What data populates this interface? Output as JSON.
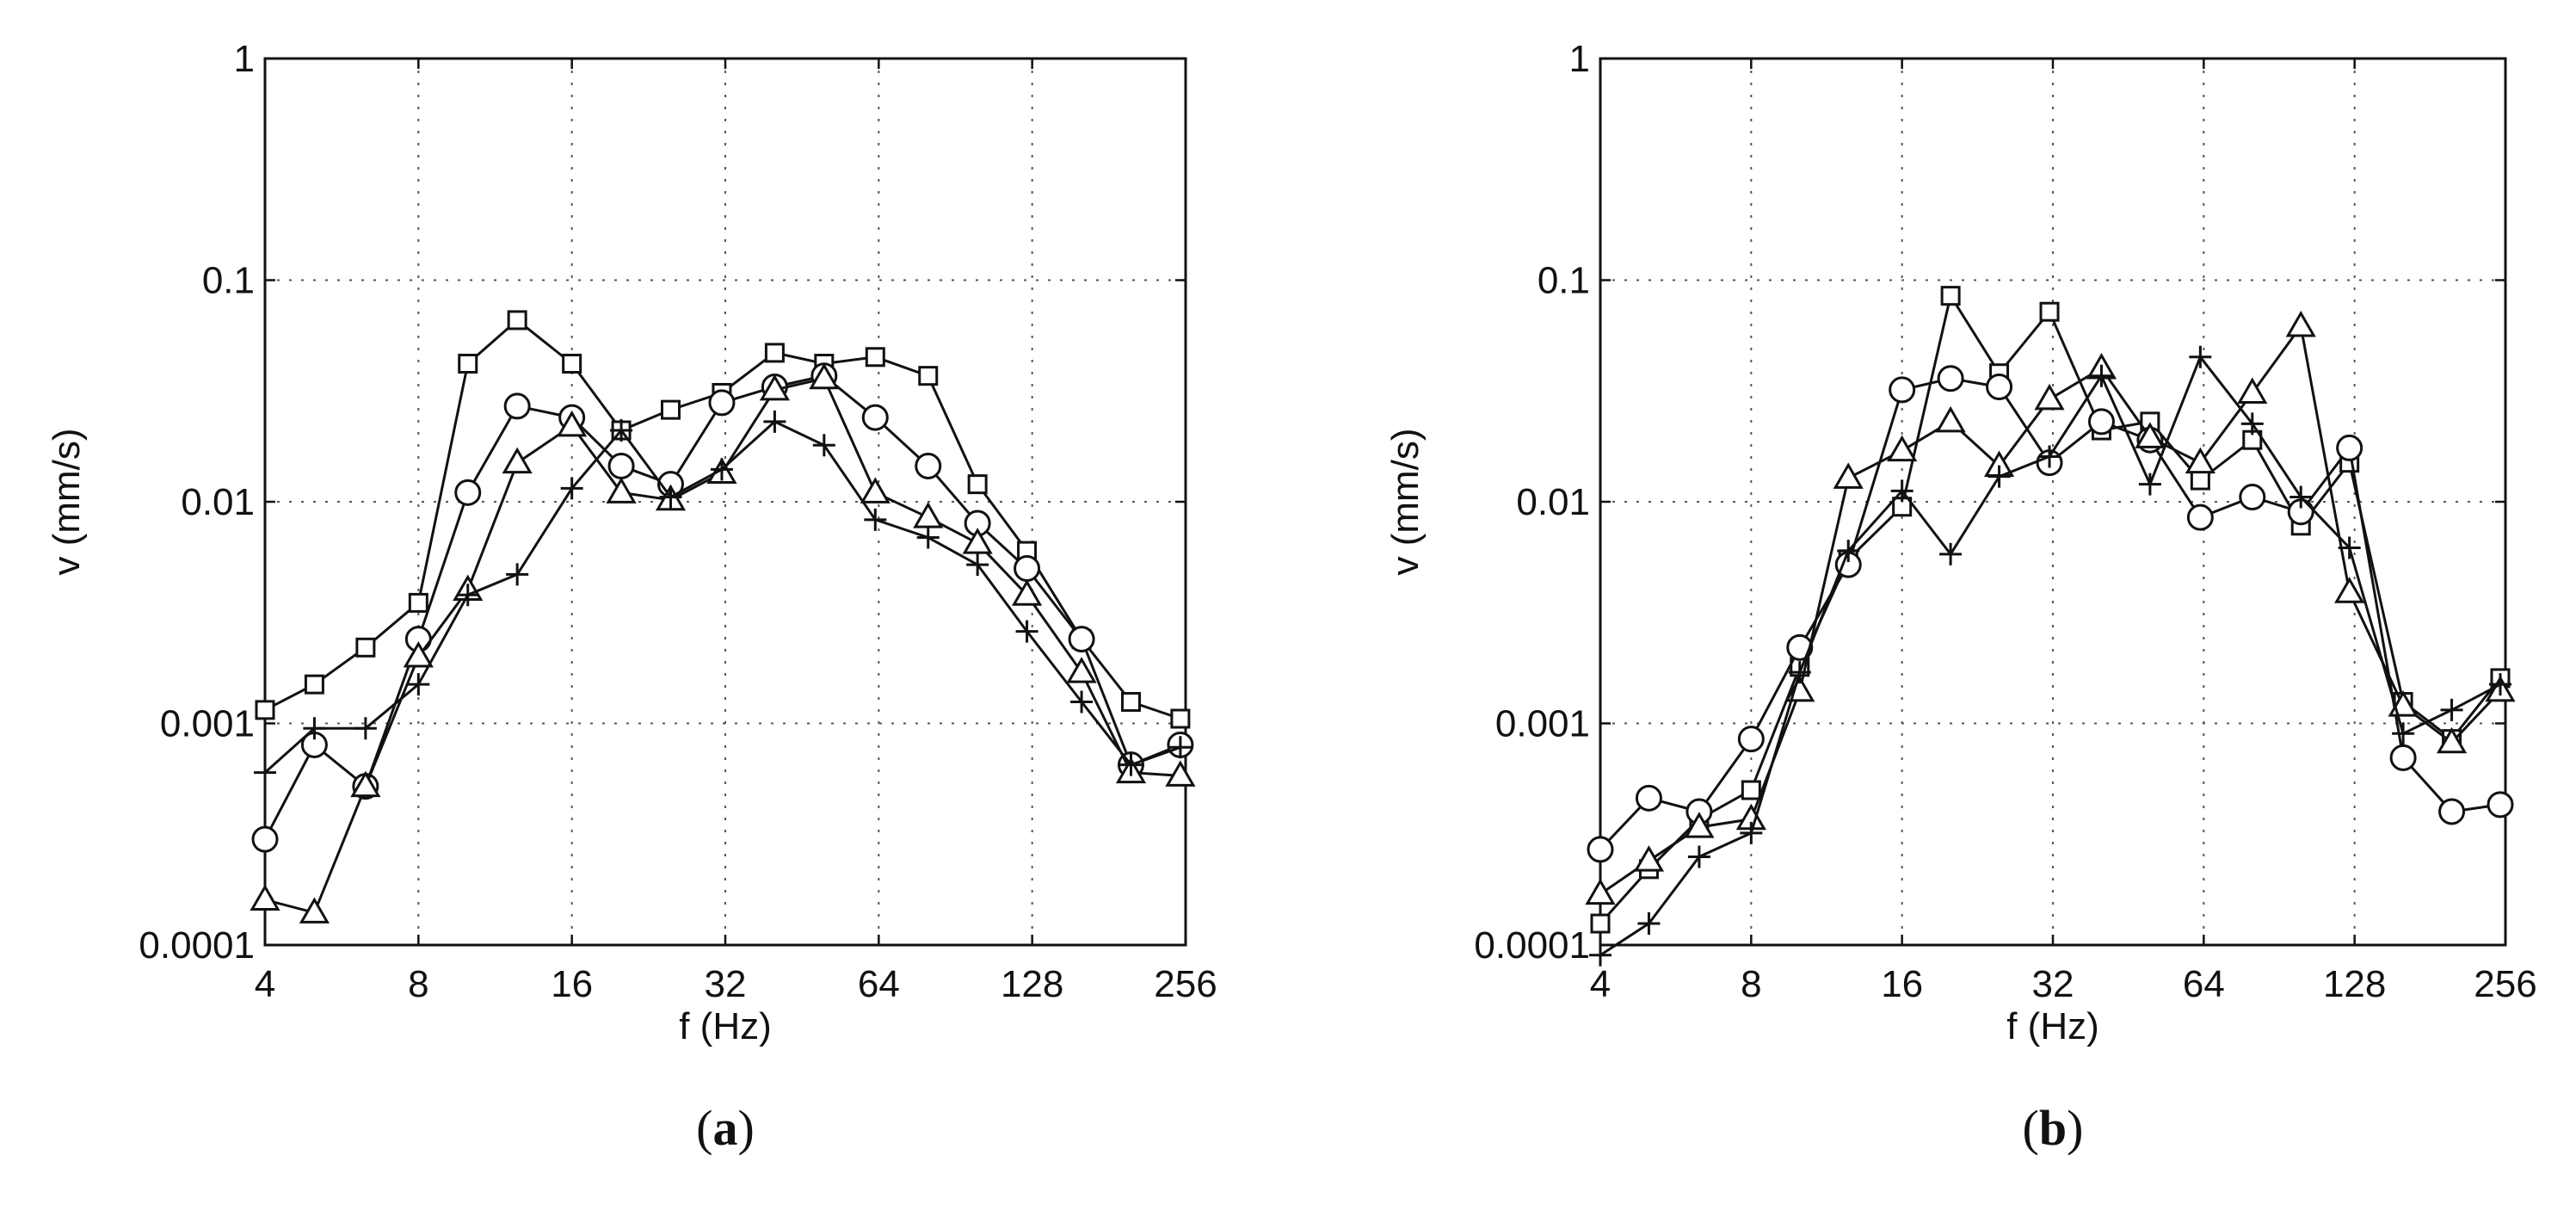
{
  "chart_data": [
    {
      "type": "line",
      "panel_label": "(a)",
      "xlabel": "f (Hz)",
      "ylabel": "v (mm/s)",
      "xscale": "log2",
      "yscale": "log10",
      "xlim": [
        4,
        256
      ],
      "ylim": [
        0.0001,
        1
      ],
      "xticks": [
        4,
        8,
        16,
        32,
        64,
        128,
        256
      ],
      "xtick_labels": [
        "4",
        "8",
        "16",
        "32",
        "64",
        "128",
        "256"
      ],
      "yticks": [
        0.0001,
        0.001,
        0.01,
        0.1,
        1
      ],
      "ytick_labels": [
        "0.0001",
        "0.001",
        "0.01",
        "0.1",
        "1"
      ],
      "grid": true,
      "x": [
        4,
        5,
        6.3,
        8,
        10,
        12.5,
        16,
        20,
        25,
        31.5,
        40,
        50,
        63,
        80,
        100,
        125,
        160,
        200,
        250
      ],
      "series": [
        {
          "name": "square",
          "marker": "square",
          "values": [
            0.00115,
            0.0015,
            0.0022,
            0.0035,
            0.042,
            0.066,
            0.042,
            0.021,
            0.026,
            0.031,
            0.047,
            0.042,
            0.045,
            0.037,
            0.012,
            0.006,
            0.0024,
            0.00125,
            0.00105
          ]
        },
        {
          "name": "circle",
          "marker": "circle",
          "values": [
            0.0003,
            0.0008,
            0.00052,
            0.0024,
            0.011,
            0.027,
            0.024,
            0.0145,
            0.012,
            0.028,
            0.033,
            0.037,
            0.024,
            0.0145,
            0.008,
            0.005,
            0.0024,
            0.00065,
            0.0008
          ]
        },
        {
          "name": "triangle",
          "marker": "triangle",
          "values": [
            0.00016,
            0.00014,
            0.00052,
            0.002,
            0.004,
            0.015,
            0.022,
            0.011,
            0.0102,
            0.0135,
            0.032,
            0.036,
            0.011,
            0.0085,
            0.0065,
            0.0038,
            0.0017,
            0.0006,
            0.00058
          ]
        },
        {
          "name": "plus",
          "marker": "plus",
          "values": [
            0.0006,
            0.00095,
            0.00095,
            0.0015,
            0.0038,
            0.0047,
            0.0115,
            0.021,
            0.0105,
            0.014,
            0.023,
            0.018,
            0.0083,
            0.0069,
            0.0052,
            0.0026,
            0.00125,
            0.00065,
            0.00078
          ]
        }
      ]
    },
    {
      "type": "line",
      "panel_label": "(b)",
      "xlabel": "f (Hz)",
      "ylabel": "v (mm/s)",
      "xscale": "log2",
      "yscale": "log10",
      "xlim": [
        4,
        256
      ],
      "ylim": [
        0.0001,
        1
      ],
      "xticks": [
        4,
        8,
        16,
        32,
        64,
        128,
        256
      ],
      "xtick_labels": [
        "4",
        "8",
        "16",
        "32",
        "64",
        "128",
        "256"
      ],
      "yticks": [
        0.0001,
        0.001,
        0.01,
        0.1,
        1
      ],
      "ytick_labels": [
        "0.0001",
        "0.001",
        "0.01",
        "0.1",
        "1"
      ],
      "grid": true,
      "x": [
        4,
        5,
        6.3,
        8,
        10,
        12.5,
        16,
        20,
        25,
        31.5,
        40,
        50,
        63,
        80,
        100,
        125,
        160,
        200,
        250
      ],
      "series": [
        {
          "name": "square",
          "marker": "square",
          "values": [
            0.000125,
            0.00022,
            0.00037,
            0.0005,
            0.0018,
            0.0055,
            0.0095,
            0.085,
            0.038,
            0.072,
            0.021,
            0.023,
            0.0125,
            0.019,
            0.0078,
            0.015,
            0.00125,
            0.00085,
            0.0016
          ]
        },
        {
          "name": "circle",
          "marker": "circle",
          "values": [
            0.00027,
            0.00046,
            0.0004,
            0.00085,
            0.0022,
            0.0052,
            0.032,
            0.036,
            0.033,
            0.015,
            0.023,
            0.019,
            0.0085,
            0.0105,
            0.009,
            0.0175,
            0.0007,
            0.0004,
            0.00043
          ]
        },
        {
          "name": "triangle",
          "marker": "triangle",
          "values": [
            0.00017,
            0.00024,
            0.00034,
            0.00037,
            0.0014,
            0.0128,
            0.017,
            0.023,
            0.0145,
            0.029,
            0.04,
            0.0195,
            0.015,
            0.031,
            0.062,
            0.0039,
            0.0012,
            0.00082,
            0.0014
          ]
        },
        {
          "name": "plus",
          "marker": "plus",
          "values": [
            9e-05,
            0.000125,
            0.00025,
            0.00032,
            0.0017,
            0.006,
            0.0112,
            0.0058,
            0.013,
            0.016,
            0.037,
            0.012,
            0.045,
            0.0225,
            0.0105,
            0.0062,
            0.0009,
            0.00115,
            0.0015
          ]
        }
      ]
    }
  ]
}
